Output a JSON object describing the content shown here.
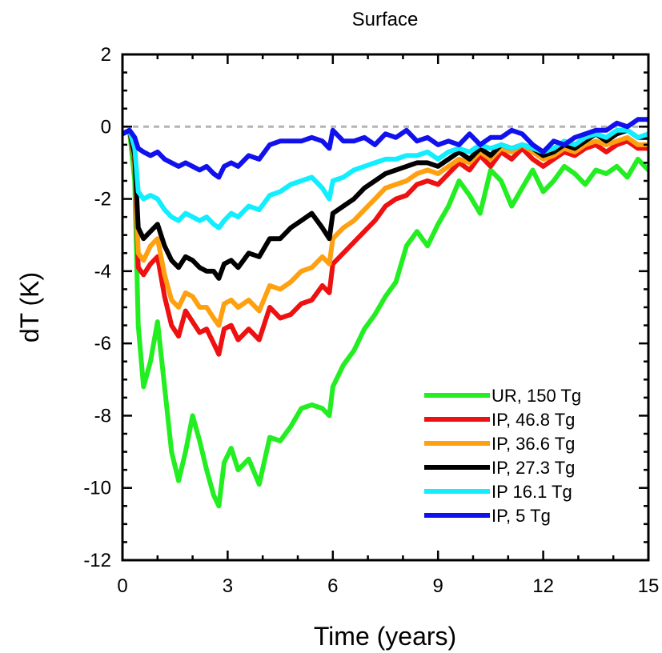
{
  "chart_data": {
    "type": "line",
    "title": "Surface",
    "xlabel": "Time (years)",
    "ylabel": "dT (K)",
    "xlim": [
      0,
      15
    ],
    "ylim": [
      -12,
      2
    ],
    "xticks": [
      0,
      3,
      6,
      9,
      12,
      15
    ],
    "xtick_labels": [
      "0",
      "3",
      "6",
      "9",
      "12",
      "15"
    ],
    "yticks": [
      2,
      0,
      -2,
      -4,
      -6,
      -8,
      -10,
      -12
    ],
    "ytick_labels": [
      "2",
      "0",
      "-2",
      "-4",
      "-6",
      "-8",
      "-10",
      "-12"
    ],
    "reference_line": {
      "y": 0,
      "color": "#b4b4b4",
      "style": "dashed"
    },
    "legend_position": "lower-right",
    "series": [
      {
        "name": "UR, 150 Tg",
        "color": "#22ee22",
        "x": [
          0,
          0.2,
          0.35,
          0.45,
          0.6,
          0.8,
          1.0,
          1.2,
          1.4,
          1.6,
          1.8,
          2.0,
          2.2,
          2.4,
          2.6,
          2.75,
          2.9,
          3.1,
          3.3,
          3.6,
          3.9,
          4.2,
          4.5,
          4.8,
          5.1,
          5.4,
          5.7,
          5.9,
          6.0,
          6.3,
          6.6,
          6.9,
          7.2,
          7.5,
          7.8,
          8.1,
          8.4,
          8.7,
          9.0,
          9.3,
          9.6,
          9.9,
          10.2,
          10.5,
          10.8,
          11.1,
          11.4,
          11.7,
          12.0,
          12.3,
          12.6,
          12.9,
          13.2,
          13.5,
          13.8,
          14.1,
          14.4,
          14.7,
          15.0
        ],
        "values": [
          -0.2,
          -0.1,
          -1.5,
          -5.5,
          -7.2,
          -6.5,
          -5.4,
          -7.2,
          -9.0,
          -9.8,
          -9.0,
          -8.0,
          -8.7,
          -9.5,
          -10.2,
          -10.5,
          -9.3,
          -8.9,
          -9.5,
          -9.2,
          -9.9,
          -8.6,
          -8.7,
          -8.3,
          -7.8,
          -7.7,
          -7.8,
          -8.0,
          -7.2,
          -6.6,
          -6.2,
          -5.6,
          -5.2,
          -4.7,
          -4.3,
          -3.3,
          -2.9,
          -3.3,
          -2.7,
          -2.2,
          -1.5,
          -1.9,
          -2.4,
          -1.2,
          -1.5,
          -2.2,
          -1.7,
          -1.2,
          -1.8,
          -1.5,
          -1.1,
          -1.3,
          -1.6,
          -1.2,
          -1.3,
          -1.1,
          -1.4,
          -0.9,
          -1.2
        ]
      },
      {
        "name": "IP, 46.8 Tg",
        "color": "#ee1111",
        "x": [
          0,
          0.2,
          0.35,
          0.45,
          0.6,
          0.8,
          1.0,
          1.2,
          1.4,
          1.6,
          1.8,
          2.0,
          2.2,
          2.4,
          2.6,
          2.75,
          2.9,
          3.1,
          3.3,
          3.6,
          3.9,
          4.2,
          4.5,
          4.8,
          5.1,
          5.4,
          5.7,
          5.9,
          6.0,
          6.3,
          6.6,
          6.9,
          7.2,
          7.5,
          7.8,
          8.1,
          8.4,
          8.7,
          9.0,
          9.3,
          9.6,
          9.9,
          10.2,
          10.5,
          10.8,
          11.1,
          11.4,
          11.7,
          12.0,
          12.3,
          12.6,
          12.9,
          13.2,
          13.5,
          13.8,
          14.1,
          14.4,
          14.7,
          15.0
        ],
        "values": [
          -0.2,
          -0.1,
          -1.0,
          -3.9,
          -4.1,
          -3.8,
          -3.6,
          -4.7,
          -5.5,
          -5.8,
          -5.1,
          -5.4,
          -5.7,
          -5.6,
          -6.0,
          -6.3,
          -5.6,
          -5.5,
          -5.9,
          -5.6,
          -5.9,
          -5.0,
          -5.3,
          -5.2,
          -4.9,
          -4.8,
          -4.4,
          -4.6,
          -3.8,
          -3.5,
          -3.2,
          -2.9,
          -2.6,
          -2.2,
          -2.0,
          -1.9,
          -1.6,
          -1.5,
          -1.6,
          -1.3,
          -1.0,
          -1.2,
          -0.8,
          -1.1,
          -0.7,
          -0.9,
          -0.6,
          -0.9,
          -1.1,
          -0.9,
          -0.7,
          -0.8,
          -0.6,
          -0.5,
          -0.7,
          -0.5,
          -0.4,
          -0.6,
          -0.6
        ]
      },
      {
        "name": "IP, 36.6 Tg",
        "color": "#ffa011",
        "x": [
          0,
          0.2,
          0.35,
          0.45,
          0.6,
          0.8,
          1.0,
          1.2,
          1.4,
          1.6,
          1.8,
          2.0,
          2.2,
          2.4,
          2.6,
          2.75,
          2.9,
          3.1,
          3.3,
          3.6,
          3.9,
          4.2,
          4.5,
          4.8,
          5.1,
          5.4,
          5.7,
          5.9,
          6.0,
          6.3,
          6.6,
          6.9,
          7.2,
          7.5,
          7.8,
          8.1,
          8.4,
          8.7,
          9.0,
          9.3,
          9.6,
          9.9,
          10.2,
          10.5,
          10.8,
          11.1,
          11.4,
          11.7,
          12.0,
          12.3,
          12.6,
          12.9,
          13.2,
          13.5,
          13.8,
          14.1,
          14.4,
          14.7,
          15.0
        ],
        "values": [
          -0.2,
          -0.1,
          -0.9,
          -3.5,
          -3.7,
          -3.3,
          -3.1,
          -4.1,
          -4.8,
          -5.0,
          -4.6,
          -4.7,
          -5.0,
          -5.0,
          -5.3,
          -5.5,
          -4.9,
          -4.8,
          -5.0,
          -4.8,
          -5.1,
          -4.4,
          -4.5,
          -4.3,
          -4.0,
          -3.9,
          -3.6,
          -3.8,
          -3.1,
          -2.8,
          -2.6,
          -2.3,
          -2.0,
          -1.7,
          -1.6,
          -1.5,
          -1.3,
          -1.2,
          -1.3,
          -1.1,
          -0.9,
          -1.0,
          -0.7,
          -0.9,
          -0.6,
          -0.7,
          -0.5,
          -0.7,
          -0.9,
          -0.8,
          -0.6,
          -0.7,
          -0.5,
          -0.4,
          -0.5,
          -0.4,
          -0.3,
          -0.5,
          -0.5
        ]
      },
      {
        "name": "IP, 27.3 Tg",
        "color": "#000000",
        "x": [
          0,
          0.2,
          0.35,
          0.45,
          0.6,
          0.8,
          1.0,
          1.2,
          1.4,
          1.6,
          1.8,
          2.0,
          2.2,
          2.4,
          2.6,
          2.75,
          2.9,
          3.1,
          3.3,
          3.6,
          3.9,
          4.2,
          4.5,
          4.8,
          5.1,
          5.4,
          5.7,
          5.9,
          6.0,
          6.3,
          6.6,
          6.9,
          7.2,
          7.5,
          7.8,
          8.1,
          8.4,
          8.7,
          9.0,
          9.3,
          9.6,
          9.9,
          10.2,
          10.5,
          10.8,
          11.1,
          11.4,
          11.7,
          12.0,
          12.3,
          12.6,
          12.9,
          13.2,
          13.5,
          13.8,
          14.1,
          14.4,
          14.7,
          15.0
        ],
        "values": [
          -0.2,
          -0.1,
          -0.8,
          -2.8,
          -3.1,
          -2.9,
          -2.7,
          -3.3,
          -3.7,
          -3.9,
          -3.6,
          -3.7,
          -3.9,
          -4.0,
          -4.0,
          -4.2,
          -3.8,
          -3.7,
          -3.9,
          -3.5,
          -3.6,
          -3.1,
          -3.1,
          -2.8,
          -2.6,
          -2.4,
          -2.8,
          -3.1,
          -2.4,
          -2.2,
          -2.0,
          -1.7,
          -1.5,
          -1.3,
          -1.2,
          -1.1,
          -1.0,
          -1.0,
          -1.1,
          -0.9,
          -0.7,
          -0.9,
          -0.6,
          -0.8,
          -0.5,
          -0.6,
          -0.5,
          -0.6,
          -0.8,
          -0.7,
          -0.5,
          -0.6,
          -0.4,
          -0.2,
          -0.4,
          -0.2,
          -0.1,
          -0.3,
          -0.3
        ]
      },
      {
        "name": "IP 16.1 Tg",
        "color": "#11eeff",
        "x": [
          0,
          0.2,
          0.35,
          0.45,
          0.6,
          0.8,
          1.0,
          1.2,
          1.4,
          1.6,
          1.8,
          2.0,
          2.2,
          2.4,
          2.6,
          2.75,
          2.9,
          3.1,
          3.3,
          3.6,
          3.9,
          4.2,
          4.5,
          4.8,
          5.1,
          5.4,
          5.7,
          5.9,
          6.0,
          6.3,
          6.6,
          6.9,
          7.2,
          7.5,
          7.8,
          8.1,
          8.4,
          8.7,
          9.0,
          9.3,
          9.6,
          9.9,
          10.2,
          10.5,
          10.8,
          11.1,
          11.4,
          11.7,
          12.0,
          12.3,
          12.6,
          12.9,
          13.2,
          13.5,
          13.8,
          14.1,
          14.4,
          14.7,
          15.0
        ],
        "values": [
          -0.2,
          -0.1,
          -0.6,
          -1.8,
          -2.0,
          -1.9,
          -2.0,
          -2.3,
          -2.5,
          -2.6,
          -2.4,
          -2.5,
          -2.6,
          -2.5,
          -2.7,
          -2.8,
          -2.6,
          -2.4,
          -2.5,
          -2.2,
          -2.3,
          -1.9,
          -1.8,
          -1.6,
          -1.5,
          -1.4,
          -1.7,
          -2.0,
          -1.5,
          -1.4,
          -1.2,
          -1.1,
          -1.0,
          -0.9,
          -0.9,
          -0.8,
          -0.8,
          -0.7,
          -0.9,
          -0.7,
          -0.6,
          -0.7,
          -0.5,
          -0.6,
          -0.5,
          -0.6,
          -0.5,
          -0.6,
          -0.7,
          -0.6,
          -0.4,
          -0.5,
          -0.3,
          -0.2,
          -0.3,
          -0.1,
          -0.1,
          -0.3,
          -0.2
        ]
      },
      {
        "name": "IP, 5 Tg",
        "color": "#1111ee",
        "x": [
          0,
          0.2,
          0.35,
          0.45,
          0.6,
          0.8,
          1.0,
          1.2,
          1.4,
          1.6,
          1.8,
          2.0,
          2.2,
          2.4,
          2.6,
          2.75,
          2.9,
          3.1,
          3.3,
          3.6,
          3.9,
          4.2,
          4.5,
          4.8,
          5.1,
          5.4,
          5.7,
          5.9,
          6.0,
          6.3,
          6.6,
          6.9,
          7.2,
          7.5,
          7.8,
          8.1,
          8.4,
          8.7,
          9.0,
          9.3,
          9.6,
          9.9,
          10.2,
          10.5,
          10.8,
          11.1,
          11.4,
          11.7,
          12.0,
          12.3,
          12.6,
          12.9,
          13.2,
          13.5,
          13.8,
          14.1,
          14.4,
          14.7,
          15.0
        ],
        "values": [
          -0.2,
          -0.1,
          -0.3,
          -0.6,
          -0.7,
          -0.8,
          -0.7,
          -0.9,
          -1.0,
          -1.1,
          -1.0,
          -1.1,
          -1.2,
          -1.1,
          -1.3,
          -1.4,
          -1.1,
          -1.0,
          -1.1,
          -0.8,
          -0.9,
          -0.5,
          -0.4,
          -0.4,
          -0.4,
          -0.3,
          -0.4,
          -0.6,
          -0.1,
          -0.4,
          -0.4,
          -0.3,
          -0.5,
          -0.2,
          -0.3,
          -0.1,
          -0.4,
          -0.3,
          -0.5,
          -0.4,
          -0.5,
          -0.2,
          -0.5,
          -0.3,
          -0.3,
          -0.1,
          -0.2,
          -0.5,
          -0.7,
          -0.4,
          -0.5,
          -0.3,
          -0.2,
          -0.1,
          -0.1,
          0.1,
          0.0,
          0.2,
          0.2
        ]
      }
    ]
  }
}
